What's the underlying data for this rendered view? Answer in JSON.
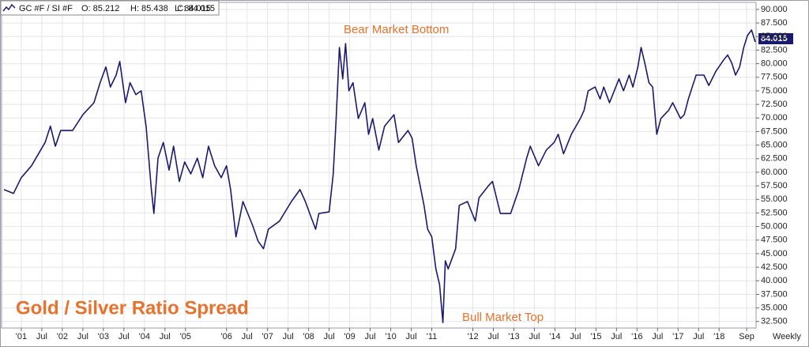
{
  "header": {
    "symbol": "GC #F / SI #F",
    "open": "O: 85.212",
    "high": "H: 85.438",
    "low": "L: 84.015",
    "close": "C: 84.015"
  },
  "chart_data": {
    "type": "line",
    "title": "Gold / Silver Ratio Spread",
    "annotations": [
      "Bear Market Bottom",
      "Bull Market Top"
    ],
    "last_value_label": "84.015",
    "period_label": "Weekly",
    "color": "#1a1a6e",
    "grid": true,
    "x": [
      2000.58,
      2000.81,
      2001.0,
      2001.25,
      2001.58,
      2001.71,
      2001.83,
      2001.96,
      2002.25,
      2002.5,
      2002.77,
      2002.92,
      2003.06,
      2003.17,
      2003.31,
      2003.4,
      2003.54,
      2003.65,
      2003.79,
      2003.92,
      2004.04,
      2004.17,
      2004.23,
      2004.33,
      2004.46,
      2004.6,
      2004.71,
      2004.85,
      2004.98,
      2005.13,
      2005.29,
      2005.42,
      2005.56,
      2005.71,
      2005.87,
      2006.0,
      2006.1,
      2006.23,
      2006.4,
      2006.63,
      2006.77,
      2006.9,
      2007.02,
      2007.29,
      2007.58,
      2007.79,
      2007.92,
      2008.06,
      2008.17,
      2008.25,
      2008.5,
      2008.6,
      2008.67,
      2008.75,
      2008.83,
      2008.9,
      2008.98,
      2009.08,
      2009.21,
      2009.37,
      2009.46,
      2009.56,
      2009.71,
      2009.85,
      2010.08,
      2010.19,
      2010.42,
      2010.52,
      2010.62,
      2010.81,
      2010.9,
      2011.0,
      2011.1,
      2011.19,
      2011.27,
      2011.33,
      2011.4,
      2011.58,
      2011.67,
      2011.87,
      2012.06,
      2012.15,
      2012.38,
      2012.48,
      2012.67,
      2012.92,
      2013.12,
      2013.31,
      2013.4,
      2013.6,
      2013.79,
      2013.98,
      2014.08,
      2014.21,
      2014.4,
      2014.62,
      2014.71,
      2014.81,
      2014.98,
      2015.1,
      2015.19,
      2015.33,
      2015.56,
      2015.67,
      2015.81,
      2015.9,
      2016.02,
      2016.1,
      2016.19,
      2016.29,
      2016.38,
      2016.48,
      2016.58,
      2016.77,
      2016.87,
      2017.06,
      2017.15,
      2017.25,
      2017.44,
      2017.63,
      2017.75,
      2017.92,
      2018.12,
      2018.21,
      2018.31,
      2018.4,
      2018.5,
      2018.6,
      2018.69,
      2018.79,
      2018.88
    ],
    "values": [
      56.8,
      56.1,
      59.0,
      61.2,
      65.5,
      68.5,
      64.8,
      67.7,
      67.7,
      70.6,
      72.8,
      76.5,
      79.4,
      75.7,
      77.9,
      80.4,
      72.8,
      76.5,
      74.3,
      75.0,
      68.5,
      56.8,
      52.4,
      62.6,
      65.5,
      60.4,
      64.8,
      58.3,
      61.9,
      59.7,
      62.6,
      59.0,
      64.8,
      61.2,
      59.0,
      61.2,
      56.8,
      48.1,
      54.6,
      50.3,
      47.3,
      45.9,
      49.5,
      51.0,
      54.6,
      56.8,
      54.6,
      51.7,
      49.5,
      52.4,
      52.7,
      59.7,
      69.9,
      83.0,
      77.2,
      83.7,
      75.0,
      76.5,
      69.9,
      72.8,
      67.0,
      69.9,
      64.1,
      68.5,
      70.6,
      65.5,
      67.7,
      66.3,
      61.2,
      53.9,
      49.5,
      48.1,
      42.2,
      39.3,
      32.3,
      43.7,
      42.2,
      45.9,
      53.9,
      54.6,
      51.0,
      55.3,
      57.5,
      58.3,
      52.4,
      52.4,
      56.8,
      62.6,
      64.8,
      61.2,
      64.1,
      65.5,
      67.0,
      63.4,
      67.0,
      69.9,
      71.4,
      75.0,
      75.7,
      73.5,
      75.7,
      72.8,
      77.2,
      75.0,
      77.9,
      75.7,
      79.4,
      83.0,
      80.1,
      76.5,
      75.7,
      67.0,
      69.9,
      71.4,
      72.8,
      69.9,
      70.6,
      73.5,
      77.9,
      77.9,
      76.0,
      78.6,
      80.8,
      81.6,
      80.1,
      77.9,
      79.4,
      83.0,
      85.2,
      86.2,
      84.0
    ],
    "xlim": [
      2000.52,
      2018.9
    ],
    "xticks": [
      {
        "value": 2001,
        "label": "'01"
      },
      {
        "value": 2001.5,
        "label": "Jul"
      },
      {
        "value": 2002,
        "label": "'02"
      },
      {
        "value": 2002.5,
        "label": "Jul"
      },
      {
        "value": 2003,
        "label": "'03"
      },
      {
        "value": 2003.5,
        "label": "Jul"
      },
      {
        "value": 2004,
        "label": "'04"
      },
      {
        "value": 2004.5,
        "label": "Jul"
      },
      {
        "value": 2005,
        "label": "'05"
      },
      {
        "value": 2006,
        "label": "'06"
      },
      {
        "value": 2006.5,
        "label": "Jul"
      },
      {
        "value": 2007,
        "label": "'07"
      },
      {
        "value": 2007.5,
        "label": "Jul"
      },
      {
        "value": 2008,
        "label": "'08"
      },
      {
        "value": 2008.5,
        "label": "Jul"
      },
      {
        "value": 2009,
        "label": "'09"
      },
      {
        "value": 2009.5,
        "label": "Jul"
      },
      {
        "value": 2010,
        "label": "'10"
      },
      {
        "value": 2010.5,
        "label": "Jul"
      },
      {
        "value": 2011,
        "label": "'11"
      },
      {
        "value": 2012,
        "label": "'12"
      },
      {
        "value": 2012.5,
        "label": "Jul"
      },
      {
        "value": 2013,
        "label": "'13"
      },
      {
        "value": 2013.5,
        "label": "Jul"
      },
      {
        "value": 2014,
        "label": "'14"
      },
      {
        "value": 2014.5,
        "label": "Jul"
      },
      {
        "value": 2015,
        "label": "'15"
      },
      {
        "value": 2015.5,
        "label": "Jul"
      },
      {
        "value": 2016,
        "label": "'16"
      },
      {
        "value": 2016.5,
        "label": "Jul"
      },
      {
        "value": 2017,
        "label": "'17"
      },
      {
        "value": 2017.5,
        "label": "Jul"
      },
      {
        "value": 2018,
        "label": "'18"
      },
      {
        "value": 2018.67,
        "label": "Sep"
      }
    ],
    "ylim": [
      31.3,
      91.3
    ],
    "yticks": [
      {
        "value": 32.5,
        "label": "32.500"
      },
      {
        "value": 35,
        "label": "35.000"
      },
      {
        "value": 37.5,
        "label": "37.500"
      },
      {
        "value": 40,
        "label": "40.000"
      },
      {
        "value": 42.5,
        "label": "42.500"
      },
      {
        "value": 45,
        "label": "45.000"
      },
      {
        "value": 47.5,
        "label": "47.500"
      },
      {
        "value": 50,
        "label": "50.000"
      },
      {
        "value": 52.5,
        "label": "52.500"
      },
      {
        "value": 55,
        "label": "55.000"
      },
      {
        "value": 57.5,
        "label": "57.500"
      },
      {
        "value": 60,
        "label": "60.000"
      },
      {
        "value": 62.5,
        "label": "62.500"
      },
      {
        "value": 65,
        "label": "65.000"
      },
      {
        "value": 67.5,
        "label": "67.500"
      },
      {
        "value": 70,
        "label": "70.000"
      },
      {
        "value": 72.5,
        "label": "72.500"
      },
      {
        "value": 75,
        "label": "75.000"
      },
      {
        "value": 77.5,
        "label": "77.500"
      },
      {
        "value": 80,
        "label": "80.000"
      },
      {
        "value": 82.5,
        "label": "82.500"
      },
      {
        "value": 85,
        "label": "85.000"
      },
      {
        "value": 87.5,
        "label": "87.500"
      },
      {
        "value": 90,
        "label": "90.000"
      }
    ]
  }
}
